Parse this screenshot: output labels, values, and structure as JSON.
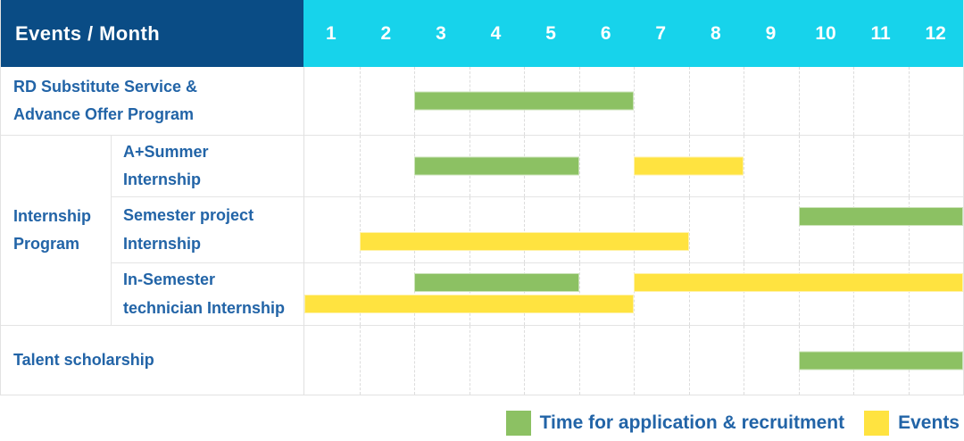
{
  "header": {
    "title": "Events / Month",
    "months": [
      "1",
      "2",
      "3",
      "4",
      "5",
      "6",
      "7",
      "8",
      "9",
      "10",
      "11",
      "12"
    ]
  },
  "colors": {
    "navy": "#0a4c85",
    "cyan": "#17d3eb",
    "green": "#8cc163",
    "yellow": "#ffe340",
    "label_blue": "#2264a7"
  },
  "group": {
    "label": "Internship Program",
    "label_lines": [
      "Internship",
      "Program"
    ]
  },
  "rows": [
    {
      "label": "RD Substitute Service & Advance Offer Program",
      "label_lines": [
        "RD Substitute Service &",
        "Advance Offer Program"
      ],
      "bars": [
        {
          "role": "application",
          "start": 3,
          "end": 6,
          "line": "center"
        }
      ]
    },
    {
      "label": "A+Summer Internship",
      "label_lines": [
        "A+Summer",
        "Internship"
      ],
      "bars": [
        {
          "role": "application",
          "start": 3,
          "end": 5,
          "line": "center"
        },
        {
          "role": "events",
          "start": 7,
          "end": 8,
          "line": "center"
        }
      ]
    },
    {
      "label": "Semester project Internship",
      "label_lines": [
        "Semester project",
        "Internship"
      ],
      "bars": [
        {
          "role": "application",
          "start": 10,
          "end": 12,
          "line": "top"
        },
        {
          "role": "events",
          "start": 2,
          "end": 7,
          "line": "bottom"
        }
      ]
    },
    {
      "label": "In-Semester technician Internship",
      "label_lines": [
        "In-Semester",
        "technician Internship"
      ],
      "bars": [
        {
          "role": "application",
          "start": 3,
          "end": 5,
          "line": "top"
        },
        {
          "role": "events",
          "start": 7,
          "end": 12,
          "line": "top"
        },
        {
          "role": "events",
          "start": 1,
          "end": 6,
          "line": "bottom"
        }
      ]
    },
    {
      "label": "Talent scholarship",
      "label_lines": [
        "Talent scholarship"
      ],
      "bars": [
        {
          "role": "application",
          "start": 10,
          "end": 12,
          "line": "center"
        }
      ]
    }
  ],
  "legend": [
    {
      "role": "application",
      "label": "Time for application & recruitment"
    },
    {
      "role": "events",
      "label": "Events"
    }
  ],
  "chart_data": {
    "type": "bar",
    "subtype": "gantt",
    "title": "Events / Month",
    "x_axis": {
      "label": "Month",
      "ticks": [
        1,
        2,
        3,
        4,
        5,
        6,
        7,
        8,
        9,
        10,
        11,
        12
      ],
      "range": [
        1,
        12
      ]
    },
    "grid": true,
    "legend_position": "bottom-right",
    "series_meaning": {
      "application": "Time for application & recruitment (green)",
      "events": "Events (yellow)"
    },
    "rows": [
      {
        "event": "RD Substitute Service & Advance Offer Program",
        "group": null,
        "application_recruitment_months": [
          [
            3,
            6
          ]
        ],
        "events_months": []
      },
      {
        "event": "A+Summer Internship",
        "group": "Internship Program",
        "application_recruitment_months": [
          [
            3,
            5
          ]
        ],
        "events_months": [
          [
            7,
            8
          ]
        ]
      },
      {
        "event": "Semester project Internship",
        "group": "Internship Program",
        "application_recruitment_months": [
          [
            10,
            12
          ]
        ],
        "events_months": [
          [
            2,
            7
          ]
        ]
      },
      {
        "event": "In-Semester technician Internship",
        "group": "Internship Program",
        "application_recruitment_months": [
          [
            3,
            5
          ]
        ],
        "events_months": [
          [
            7,
            12
          ],
          [
            1,
            6
          ]
        ]
      },
      {
        "event": "Talent scholarship",
        "group": null,
        "application_recruitment_months": [
          [
            10,
            12
          ]
        ],
        "events_months": []
      }
    ],
    "legend_labels": [
      "Time for application & recruitment",
      "Events"
    ]
  }
}
